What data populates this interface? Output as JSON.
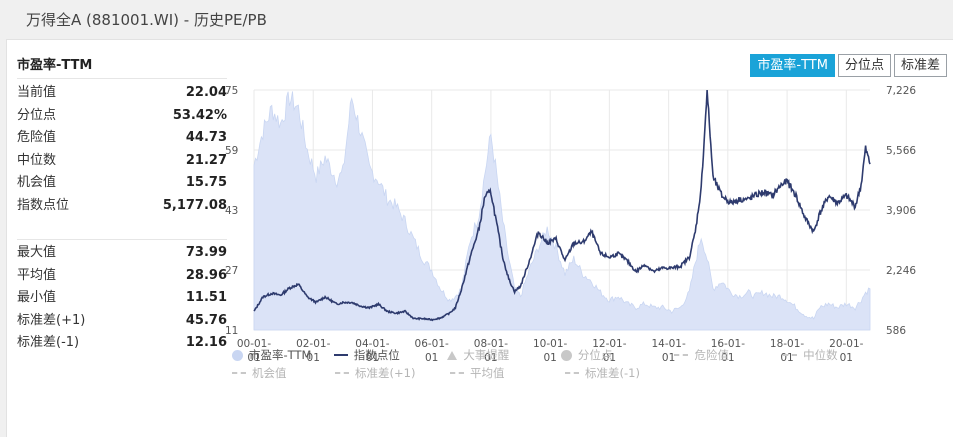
{
  "window": {
    "title": "万得全A (881001.WI) - 历史PE/PB"
  },
  "stats": {
    "header": "市盈率-TTM",
    "group1": [
      {
        "label": "当前值",
        "value": "22.04"
      },
      {
        "label": "分位点",
        "value": "53.42%"
      },
      {
        "label": "危险值",
        "value": "44.73"
      },
      {
        "label": "中位数",
        "value": "21.27"
      },
      {
        "label": "机会值",
        "value": "15.75"
      },
      {
        "label": "指数点位",
        "value": "5,177.08"
      }
    ],
    "group2": [
      {
        "label": "最大值",
        "value": "73.99"
      },
      {
        "label": "平均值",
        "value": "28.96"
      },
      {
        "label": "最小值",
        "value": "11.51"
      },
      {
        "label": "标准差(+1)",
        "value": "45.76"
      },
      {
        "label": "标准差(-1)",
        "value": "12.16"
      }
    ]
  },
  "tabs": [
    {
      "label": "市盈率-TTM",
      "active": true
    },
    {
      "label": "分位点",
      "active": false
    },
    {
      "label": "标准差",
      "active": false
    }
  ],
  "legend": {
    "row1": [
      {
        "label": "市盈率-TTM",
        "icon": "circle",
        "color": "#c9d6f2",
        "muted": false
      },
      {
        "label": "指数点位",
        "icon": "line",
        "color": "#2e3b6e",
        "muted": false
      },
      {
        "label": "大事提醒",
        "icon": "triangle",
        "color": "#c8c8c8",
        "muted": true
      },
      {
        "label": "分位点",
        "icon": "circle",
        "color": "#c8c8c8",
        "muted": true
      },
      {
        "label": "危险值",
        "icon": "dash",
        "color": "#c8c8c8",
        "muted": true
      },
      {
        "label": "中位数",
        "icon": "dash",
        "color": "#c8c8c8",
        "muted": true
      }
    ],
    "row2": [
      {
        "label": "机会值",
        "icon": "dash",
        "color": "#c8c8c8",
        "muted": true
      },
      {
        "label": "标准差(+1)",
        "icon": "dash",
        "color": "#c8c8c8",
        "muted": true
      },
      {
        "label": "平均值",
        "icon": "dash",
        "color": "#c8c8c8",
        "muted": true
      },
      {
        "label": "标准差(-1)",
        "icon": "dash",
        "color": "#c8c8c8",
        "muted": true
      }
    ]
  },
  "chart_data": {
    "type": "area",
    "y_left_ticks": [
      "75",
      "59",
      "43",
      "27",
      "11"
    ],
    "y_left_range": [
      11,
      75
    ],
    "y_right_ticks": [
      "7,226",
      "5,566",
      "3,906",
      "2,246",
      "586"
    ],
    "y_right_range": [
      586,
      7226
    ],
    "x_ticks": [
      "00-01-\n01",
      "02-01-\n01",
      "04-01-\n01",
      "06-01-\n01",
      "08-01-\n01",
      "10-01-\n01",
      "12-01-\n01",
      "14-01-\n01",
      "16-01-\n01",
      "18-01-\n01",
      "20-01-\n01"
    ],
    "x_range": [
      2000.0,
      2020.8
    ],
    "colors": {
      "pe_fill": "#dbe3f7",
      "pe_stroke": "#c9d6f2",
      "index_line": "#2e3b6e",
      "grid": "#e9e9e9"
    },
    "series": [
      {
        "name": "市盈率-TTM",
        "type": "area",
        "axis": "left",
        "points": [
          [
            2000.0,
            55
          ],
          [
            2000.3,
            64
          ],
          [
            2000.6,
            70
          ],
          [
            2000.9,
            66
          ],
          [
            2001.2,
            73
          ],
          [
            2001.5,
            70
          ],
          [
            2001.8,
            59
          ],
          [
            2002.1,
            52
          ],
          [
            2002.4,
            57
          ],
          [
            2002.8,
            51
          ],
          [
            2003.0,
            53
          ],
          [
            2003.3,
            73
          ],
          [
            2003.6,
            64
          ],
          [
            2003.9,
            54
          ],
          [
            2004.2,
            51
          ],
          [
            2004.5,
            46
          ],
          [
            2004.8,
            44
          ],
          [
            2005.1,
            40
          ],
          [
            2005.4,
            35
          ],
          [
            2005.7,
            30
          ],
          [
            2006.0,
            27
          ],
          [
            2006.3,
            22
          ],
          [
            2006.6,
            19
          ],
          [
            2006.8,
            20
          ],
          [
            2007.0,
            22
          ],
          [
            2007.3,
            35
          ],
          [
            2007.6,
            42
          ],
          [
            2007.8,
            53
          ],
          [
            2008.0,
            63
          ],
          [
            2008.2,
            52
          ],
          [
            2008.4,
            40
          ],
          [
            2008.6,
            30
          ],
          [
            2008.8,
            22
          ],
          [
            2009.0,
            20
          ],
          [
            2009.3,
            27
          ],
          [
            2009.6,
            33
          ],
          [
            2009.9,
            38
          ],
          [
            2010.2,
            33
          ],
          [
            2010.5,
            26
          ],
          [
            2010.8,
            30
          ],
          [
            2011.1,
            26
          ],
          [
            2011.4,
            24
          ],
          [
            2011.7,
            21
          ],
          [
            2012.0,
            19
          ],
          [
            2012.3,
            20
          ],
          [
            2012.6,
            18
          ],
          [
            2012.9,
            17
          ],
          [
            2013.2,
            18
          ],
          [
            2013.5,
            17
          ],
          [
            2013.8,
            17
          ],
          [
            2014.1,
            16
          ],
          [
            2014.4,
            17
          ],
          [
            2014.7,
            21
          ],
          [
            2014.9,
            29
          ],
          [
            2015.1,
            36
          ],
          [
            2015.3,
            30
          ],
          [
            2015.5,
            22
          ],
          [
            2015.8,
            24
          ],
          [
            2016.1,
            21
          ],
          [
            2016.4,
            20
          ],
          [
            2016.7,
            21
          ],
          [
            2016.9,
            20
          ],
          [
            2017.2,
            21
          ],
          [
            2017.5,
            20
          ],
          [
            2017.8,
            20
          ],
          [
            2018.0,
            19
          ],
          [
            2018.3,
            17
          ],
          [
            2018.6,
            15
          ],
          [
            2018.9,
            14
          ],
          [
            2019.1,
            17
          ],
          [
            2019.4,
            18
          ],
          [
            2019.7,
            17
          ],
          [
            2020.0,
            18
          ],
          [
            2020.3,
            17
          ],
          [
            2020.5,
            19
          ],
          [
            2020.65,
            21
          ],
          [
            2020.8,
            22
          ]
        ]
      },
      {
        "name": "指数点位",
        "type": "line",
        "axis": "right",
        "points": [
          [
            2000.0,
            1100
          ],
          [
            2000.3,
            1500
          ],
          [
            2000.6,
            1600
          ],
          [
            2000.9,
            1550
          ],
          [
            2001.2,
            1750
          ],
          [
            2001.5,
            1850
          ],
          [
            2001.8,
            1500
          ],
          [
            2002.1,
            1350
          ],
          [
            2002.4,
            1500
          ],
          [
            2002.8,
            1300
          ],
          [
            2003.0,
            1350
          ],
          [
            2003.3,
            1350
          ],
          [
            2003.6,
            1250
          ],
          [
            2003.9,
            1200
          ],
          [
            2004.2,
            1300
          ],
          [
            2004.5,
            1100
          ],
          [
            2004.8,
            1050
          ],
          [
            2005.1,
            1100
          ],
          [
            2005.4,
            900
          ],
          [
            2005.7,
            900
          ],
          [
            2006.0,
            870
          ],
          [
            2006.3,
            920
          ],
          [
            2006.6,
            1050
          ],
          [
            2006.8,
            1200
          ],
          [
            2007.0,
            1700
          ],
          [
            2007.3,
            2600
          ],
          [
            2007.6,
            3400
          ],
          [
            2007.8,
            4300
          ],
          [
            2008.0,
            4400
          ],
          [
            2008.2,
            3500
          ],
          [
            2008.4,
            2600
          ],
          [
            2008.6,
            2000
          ],
          [
            2008.8,
            1650
          ],
          [
            2009.0,
            1800
          ],
          [
            2009.3,
            2500
          ],
          [
            2009.6,
            3300
          ],
          [
            2009.9,
            3000
          ],
          [
            2010.2,
            3100
          ],
          [
            2010.5,
            2500
          ],
          [
            2010.8,
            3000
          ],
          [
            2011.1,
            3000
          ],
          [
            2011.4,
            3300
          ],
          [
            2011.7,
            2700
          ],
          [
            2012.0,
            2600
          ],
          [
            2012.3,
            2700
          ],
          [
            2012.6,
            2500
          ],
          [
            2012.9,
            2200
          ],
          [
            2013.2,
            2400
          ],
          [
            2013.5,
            2200
          ],
          [
            2013.8,
            2300
          ],
          [
            2014.1,
            2300
          ],
          [
            2014.4,
            2350
          ],
          [
            2014.7,
            2600
          ],
          [
            2014.9,
            3300
          ],
          [
            2015.1,
            4500
          ],
          [
            2015.3,
            7200
          ],
          [
            2015.5,
            4800
          ],
          [
            2015.8,
            4300
          ],
          [
            2016.1,
            4100
          ],
          [
            2016.4,
            4200
          ],
          [
            2016.7,
            4200
          ],
          [
            2016.9,
            4300
          ],
          [
            2017.2,
            4400
          ],
          [
            2017.5,
            4300
          ],
          [
            2017.8,
            4600
          ],
          [
            2018.0,
            4700
          ],
          [
            2018.3,
            4300
          ],
          [
            2018.6,
            3700
          ],
          [
            2018.9,
            3300
          ],
          [
            2019.1,
            3800
          ],
          [
            2019.4,
            4300
          ],
          [
            2019.7,
            4100
          ],
          [
            2020.0,
            4300
          ],
          [
            2020.3,
            4000
          ],
          [
            2020.5,
            4600
          ],
          [
            2020.65,
            5600
          ],
          [
            2020.8,
            5177
          ]
        ]
      }
    ]
  }
}
